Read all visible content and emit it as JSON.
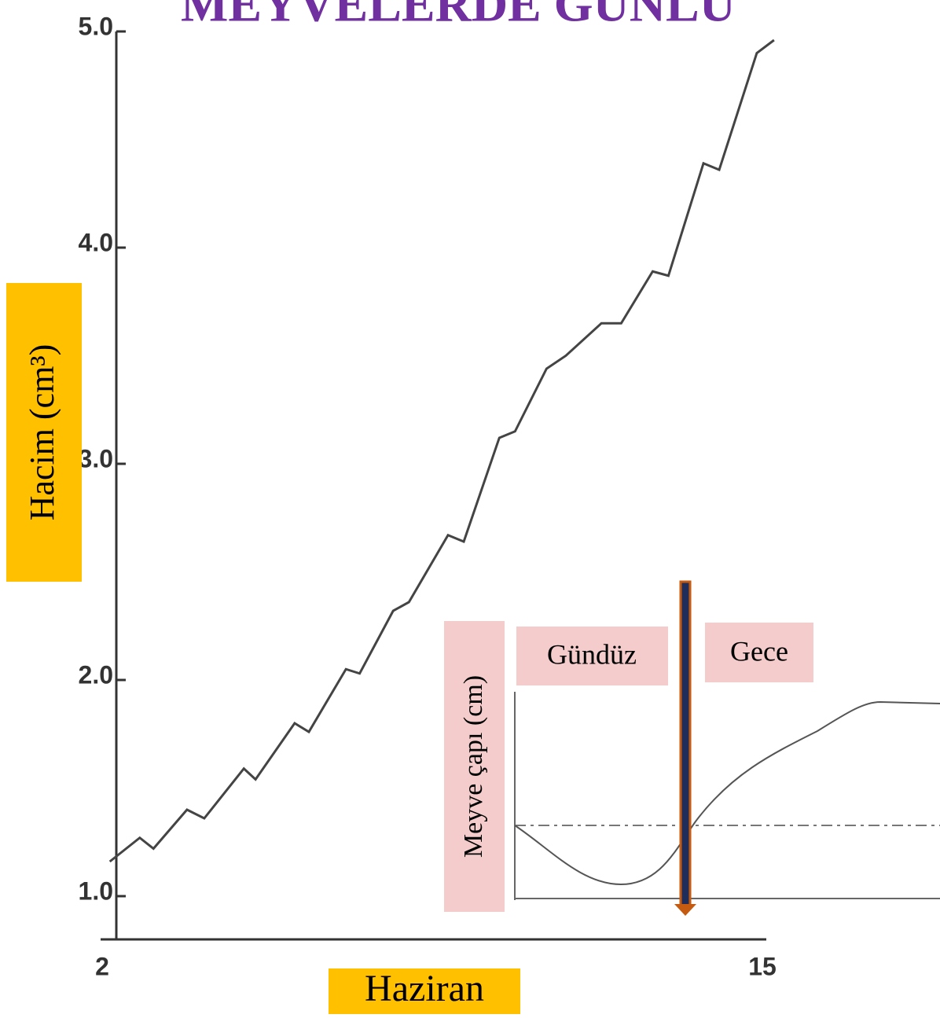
{
  "chart_data": {
    "type": "line",
    "title": "MEYVELERDE GÜNLÜ",
    "xlabel": "Haziran",
    "ylabel": "Hacim (cm³)",
    "x": [
      2.15,
      2.74,
      3.01,
      3.67,
      4.01,
      4.79,
      5.02,
      5.79,
      6.07,
      6.8,
      7.07,
      7.73,
      8.04,
      8.81,
      9.12,
      9.82,
      10.13,
      10.75,
      11.13,
      11.83,
      12.22,
      12.84,
      13.15,
      13.84,
      14.15,
      14.89,
      15.23
    ],
    "series": [
      {
        "name": "Hacim",
        "color": "#444444",
        "values": [
          1.16,
          1.27,
          1.22,
          1.4,
          1.36,
          1.59,
          1.54,
          1.8,
          1.76,
          2.05,
          2.03,
          2.32,
          2.36,
          2.67,
          2.64,
          3.12,
          3.15,
          3.44,
          3.5,
          3.65,
          3.65,
          3.89,
          3.87,
          4.39,
          4.36,
          4.9,
          4.96
        ]
      }
    ],
    "xlim": [
      2,
      15
    ],
    "xticks": [
      2,
      15
    ],
    "ylim": [
      0.8,
      5.0
    ],
    "yticks": [
      {
        "value": 1,
        "label": "1.0"
      },
      {
        "value": 2,
        "label": "2.0"
      },
      {
        "value": 3,
        "label": "3.0"
      },
      {
        "value": 4,
        "label": "4.0"
      },
      {
        "value": 5,
        "label": "5.0"
      }
    ],
    "grid": false
  },
  "inset": {
    "ylabel": "Meyve çapı (cm)",
    "day": "Gündüz",
    "night": "Gece"
  }
}
